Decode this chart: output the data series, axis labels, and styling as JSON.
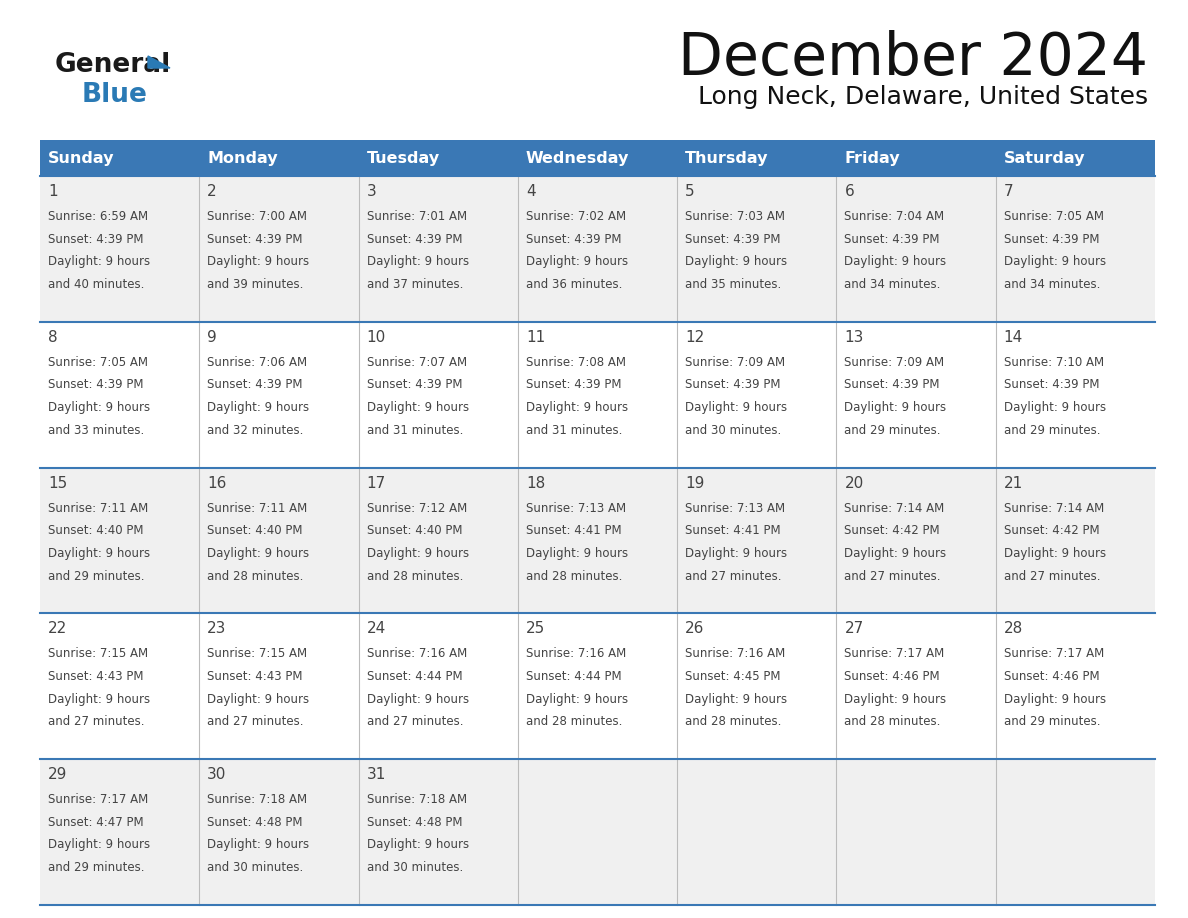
{
  "title": "December 2024",
  "subtitle": "Long Neck, Delaware, United States",
  "header_bg_color": "#3a78b5",
  "header_text_color": "#ffffff",
  "cell_bg_color_even": "#f0f0f0",
  "cell_bg_color_odd": "#ffffff",
  "grid_line_color": "#3a78b5",
  "text_color": "#444444",
  "days_of_week": [
    "Sunday",
    "Monday",
    "Tuesday",
    "Wednesday",
    "Thursday",
    "Friday",
    "Saturday"
  ],
  "calendar": [
    [
      {
        "day": "1",
        "sunrise": "6:59 AM",
        "sunset": "4:39 PM",
        "dl1": "9 hours",
        "dl2": "and 40 minutes."
      },
      {
        "day": "2",
        "sunrise": "7:00 AM",
        "sunset": "4:39 PM",
        "dl1": "9 hours",
        "dl2": "and 39 minutes."
      },
      {
        "day": "3",
        "sunrise": "7:01 AM",
        "sunset": "4:39 PM",
        "dl1": "9 hours",
        "dl2": "and 37 minutes."
      },
      {
        "day": "4",
        "sunrise": "7:02 AM",
        "sunset": "4:39 PM",
        "dl1": "9 hours",
        "dl2": "and 36 minutes."
      },
      {
        "day": "5",
        "sunrise": "7:03 AM",
        "sunset": "4:39 PM",
        "dl1": "9 hours",
        "dl2": "and 35 minutes."
      },
      {
        "day": "6",
        "sunrise": "7:04 AM",
        "sunset": "4:39 PM",
        "dl1": "9 hours",
        "dl2": "and 34 minutes."
      },
      {
        "day": "7",
        "sunrise": "7:05 AM",
        "sunset": "4:39 PM",
        "dl1": "9 hours",
        "dl2": "and 34 minutes."
      }
    ],
    [
      {
        "day": "8",
        "sunrise": "7:05 AM",
        "sunset": "4:39 PM",
        "dl1": "9 hours",
        "dl2": "and 33 minutes."
      },
      {
        "day": "9",
        "sunrise": "7:06 AM",
        "sunset": "4:39 PM",
        "dl1": "9 hours",
        "dl2": "and 32 minutes."
      },
      {
        "day": "10",
        "sunrise": "7:07 AM",
        "sunset": "4:39 PM",
        "dl1": "9 hours",
        "dl2": "and 31 minutes."
      },
      {
        "day": "11",
        "sunrise": "7:08 AM",
        "sunset": "4:39 PM",
        "dl1": "9 hours",
        "dl2": "and 31 minutes."
      },
      {
        "day": "12",
        "sunrise": "7:09 AM",
        "sunset": "4:39 PM",
        "dl1": "9 hours",
        "dl2": "and 30 minutes."
      },
      {
        "day": "13",
        "sunrise": "7:09 AM",
        "sunset": "4:39 PM",
        "dl1": "9 hours",
        "dl2": "and 29 minutes."
      },
      {
        "day": "14",
        "sunrise": "7:10 AM",
        "sunset": "4:39 PM",
        "dl1": "9 hours",
        "dl2": "and 29 minutes."
      }
    ],
    [
      {
        "day": "15",
        "sunrise": "7:11 AM",
        "sunset": "4:40 PM",
        "dl1": "9 hours",
        "dl2": "and 29 minutes."
      },
      {
        "day": "16",
        "sunrise": "7:11 AM",
        "sunset": "4:40 PM",
        "dl1": "9 hours",
        "dl2": "and 28 minutes."
      },
      {
        "day": "17",
        "sunrise": "7:12 AM",
        "sunset": "4:40 PM",
        "dl1": "9 hours",
        "dl2": "and 28 minutes."
      },
      {
        "day": "18",
        "sunrise": "7:13 AM",
        "sunset": "4:41 PM",
        "dl1": "9 hours",
        "dl2": "and 28 minutes."
      },
      {
        "day": "19",
        "sunrise": "7:13 AM",
        "sunset": "4:41 PM",
        "dl1": "9 hours",
        "dl2": "and 27 minutes."
      },
      {
        "day": "20",
        "sunrise": "7:14 AM",
        "sunset": "4:42 PM",
        "dl1": "9 hours",
        "dl2": "and 27 minutes."
      },
      {
        "day": "21",
        "sunrise": "7:14 AM",
        "sunset": "4:42 PM",
        "dl1": "9 hours",
        "dl2": "and 27 minutes."
      }
    ],
    [
      {
        "day": "22",
        "sunrise": "7:15 AM",
        "sunset": "4:43 PM",
        "dl1": "9 hours",
        "dl2": "and 27 minutes."
      },
      {
        "day": "23",
        "sunrise": "7:15 AM",
        "sunset": "4:43 PM",
        "dl1": "9 hours",
        "dl2": "and 27 minutes."
      },
      {
        "day": "24",
        "sunrise": "7:16 AM",
        "sunset": "4:44 PM",
        "dl1": "9 hours",
        "dl2": "and 27 minutes."
      },
      {
        "day": "25",
        "sunrise": "7:16 AM",
        "sunset": "4:44 PM",
        "dl1": "9 hours",
        "dl2": "and 28 minutes."
      },
      {
        "day": "26",
        "sunrise": "7:16 AM",
        "sunset": "4:45 PM",
        "dl1": "9 hours",
        "dl2": "and 28 minutes."
      },
      {
        "day": "27",
        "sunrise": "7:17 AM",
        "sunset": "4:46 PM",
        "dl1": "9 hours",
        "dl2": "and 28 minutes."
      },
      {
        "day": "28",
        "sunrise": "7:17 AM",
        "sunset": "4:46 PM",
        "dl1": "9 hours",
        "dl2": "and 29 minutes."
      }
    ],
    [
      {
        "day": "29",
        "sunrise": "7:17 AM",
        "sunset": "4:47 PM",
        "dl1": "9 hours",
        "dl2": "and 29 minutes."
      },
      {
        "day": "30",
        "sunrise": "7:18 AM",
        "sunset": "4:48 PM",
        "dl1": "9 hours",
        "dl2": "and 30 minutes."
      },
      {
        "day": "31",
        "sunrise": "7:18 AM",
        "sunset": "4:48 PM",
        "dl1": "9 hours",
        "dl2": "and 30 minutes."
      },
      null,
      null,
      null,
      null
    ]
  ],
  "logo_general_color": "#1a1a1a",
  "logo_blue_color": "#2a7ab5",
  "logo_triangle_color": "#2a7ab5"
}
